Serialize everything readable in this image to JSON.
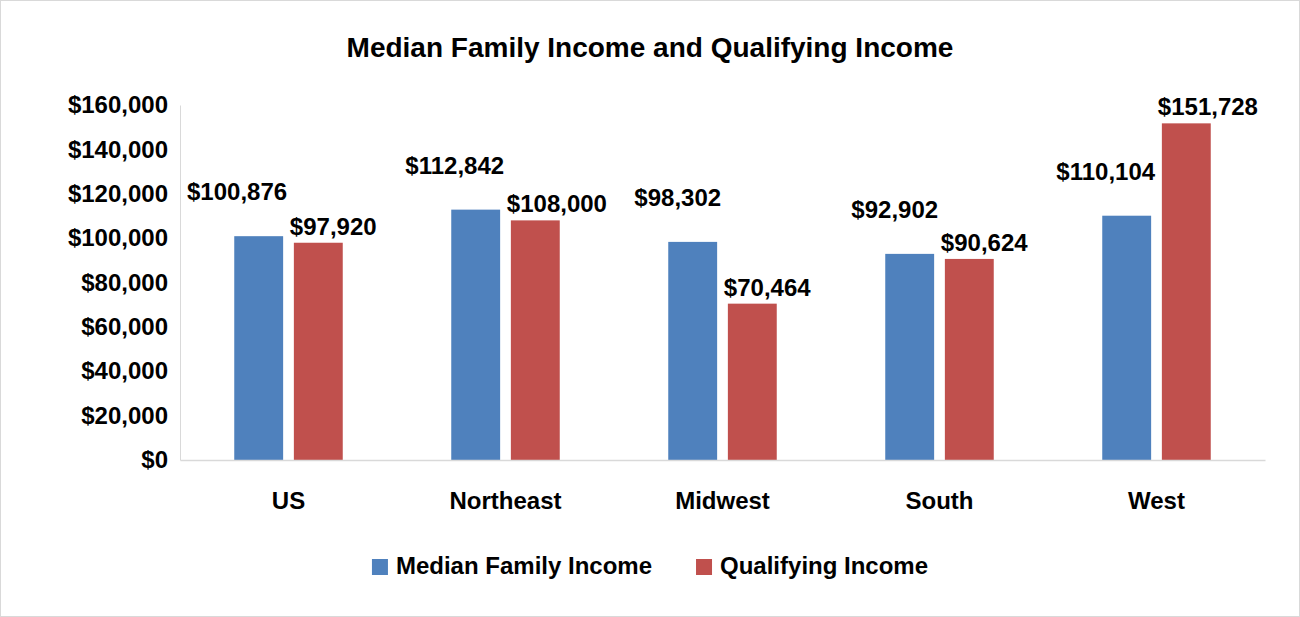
{
  "chart_data": {
    "type": "bar",
    "title": "Median Family Income and Qualifying Income",
    "categories": [
      "US",
      "Northeast",
      "Midwest",
      "South",
      "West"
    ],
    "series": [
      {
        "name": "Median Family Income",
        "color": "#4f81bd",
        "values": [
          100876,
          112842,
          98302,
          92902,
          110104
        ],
        "value_labels": [
          "$100,876",
          "$112,842",
          "$98,302",
          "$92,902",
          "$110,104"
        ]
      },
      {
        "name": "Qualifying Income",
        "color": "#c0504d",
        "values": [
          97920,
          108000,
          70464,
          90624,
          151728
        ],
        "value_labels": [
          "$97,920",
          "$108,000",
          "$70,464",
          "$90,624",
          "$151,728"
        ]
      }
    ],
    "ylim": [
      0,
      160000
    ],
    "yticks": [
      {
        "value": 0,
        "label": "$0"
      },
      {
        "value": 20000,
        "label": "$20,000"
      },
      {
        "value": 40000,
        "label": "$40,000"
      },
      {
        "value": 60000,
        "label": "$60,000"
      },
      {
        "value": 80000,
        "label": "$80,000"
      },
      {
        "value": 100000,
        "label": "$100,000"
      },
      {
        "value": 120000,
        "label": "$120,000"
      },
      {
        "value": 140000,
        "label": "$140,000"
      },
      {
        "value": 160000,
        "label": "$160,000"
      }
    ],
    "grid": false,
    "legend": "bottom",
    "data_labels": true
  }
}
